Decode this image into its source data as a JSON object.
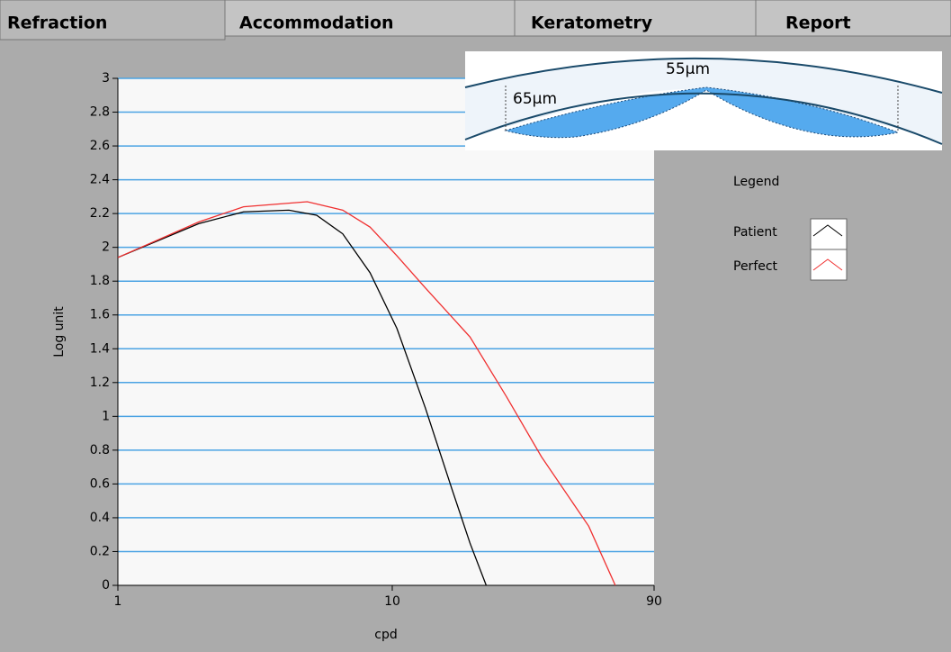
{
  "tabs": [
    "Refraction",
    "Accommodation",
    "Keratometry",
    "Report"
  ],
  "inset": {
    "labels": [
      "55µm",
      "65µm"
    ]
  },
  "chart_data": {
    "type": "line",
    "xlabel": "cpd",
    "ylabel": "Log unit",
    "xscale": "log",
    "xlim": [
      1,
      90
    ],
    "xticks": [
      1,
      10,
      90
    ],
    "ylim": [
      0,
      3
    ],
    "yticks": [
      0,
      0.2,
      0.4,
      0.6,
      0.8,
      1,
      1.2,
      1.4,
      1.6,
      1.8,
      2,
      2.2,
      2.4,
      2.6,
      2.8,
      3
    ],
    "grid": true,
    "legend_title": "Legend",
    "legend": "right",
    "series": [
      {
        "name": "Patient",
        "color": "#000000",
        "x": [
          1,
          1.97,
          2.87,
          4.2,
          5.3,
          6.6,
          8.3,
          10.4,
          13.2,
          16.5,
          19.2,
          22
        ],
        "values": [
          1.94,
          2.14,
          2.21,
          2.22,
          2.19,
          2.08,
          1.85,
          1.52,
          1.05,
          0.57,
          0.25,
          0
        ]
      },
      {
        "name": "Perfect",
        "color": "#f03030",
        "x": [
          1,
          1.97,
          2.87,
          4.9,
          6.6,
          8.3,
          10.4,
          13.2,
          19.2,
          26,
          35,
          52,
          65
        ],
        "values": [
          1.94,
          2.15,
          2.24,
          2.27,
          2.22,
          2.12,
          1.95,
          1.76,
          1.47,
          1.12,
          0.76,
          0.35,
          0
        ]
      }
    ]
  }
}
